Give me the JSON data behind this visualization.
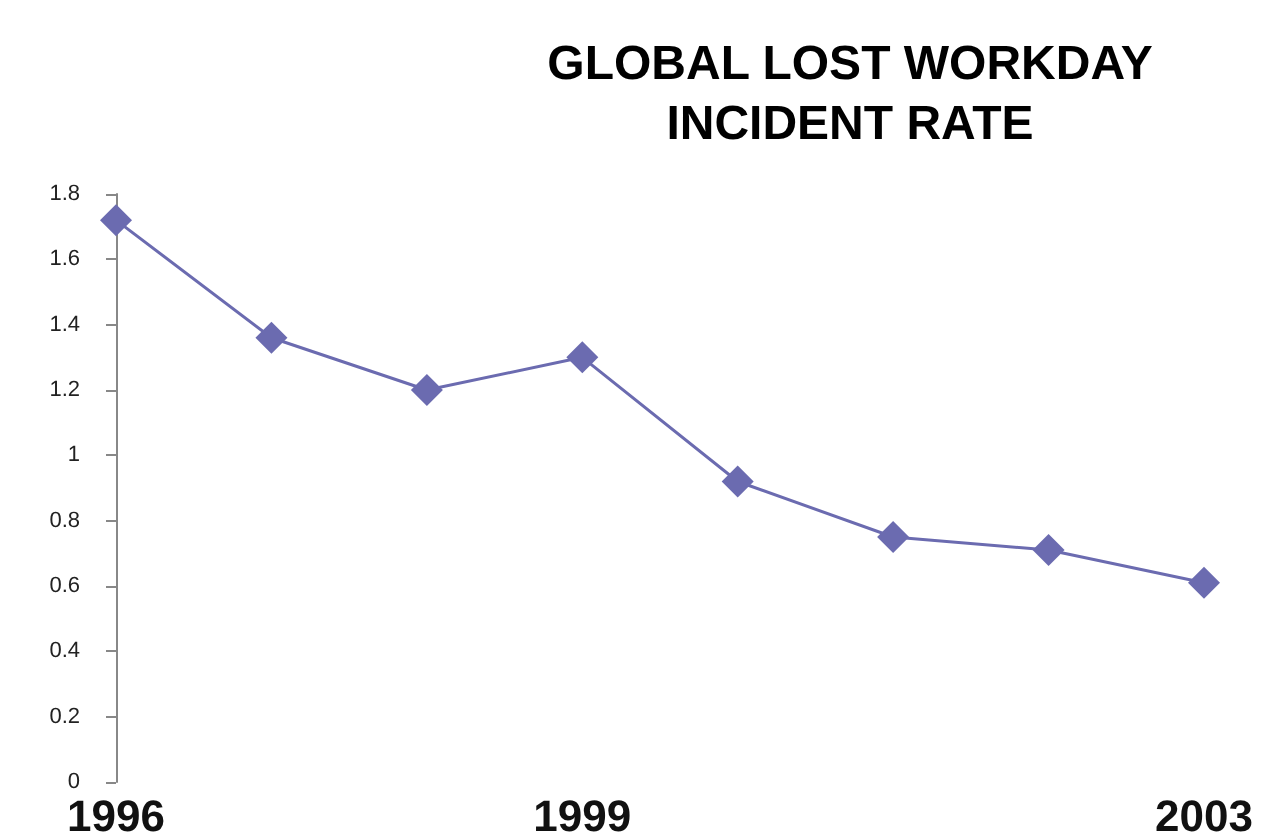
{
  "chart_data": {
    "type": "line",
    "title": "GLOBAL LOST WORKDAY\nINCIDENT RATE",
    "categories": [
      "1996",
      null,
      null,
      "1999",
      null,
      null,
      null,
      "2003"
    ],
    "series": [
      {
        "color": "#6b6bb0",
        "values": [
          1.72,
          1.36,
          1.2,
          1.3,
          0.92,
          0.75,
          0.71,
          0.61
        ]
      }
    ],
    "ylim": [
      0,
      1.8
    ],
    "yticks": [
      0,
      0.2,
      0.4,
      0.6,
      0.8,
      1,
      1.2,
      1.4,
      1.6,
      1.8
    ],
    "grid": false,
    "marker": "diamond",
    "line_style": "solid"
  }
}
